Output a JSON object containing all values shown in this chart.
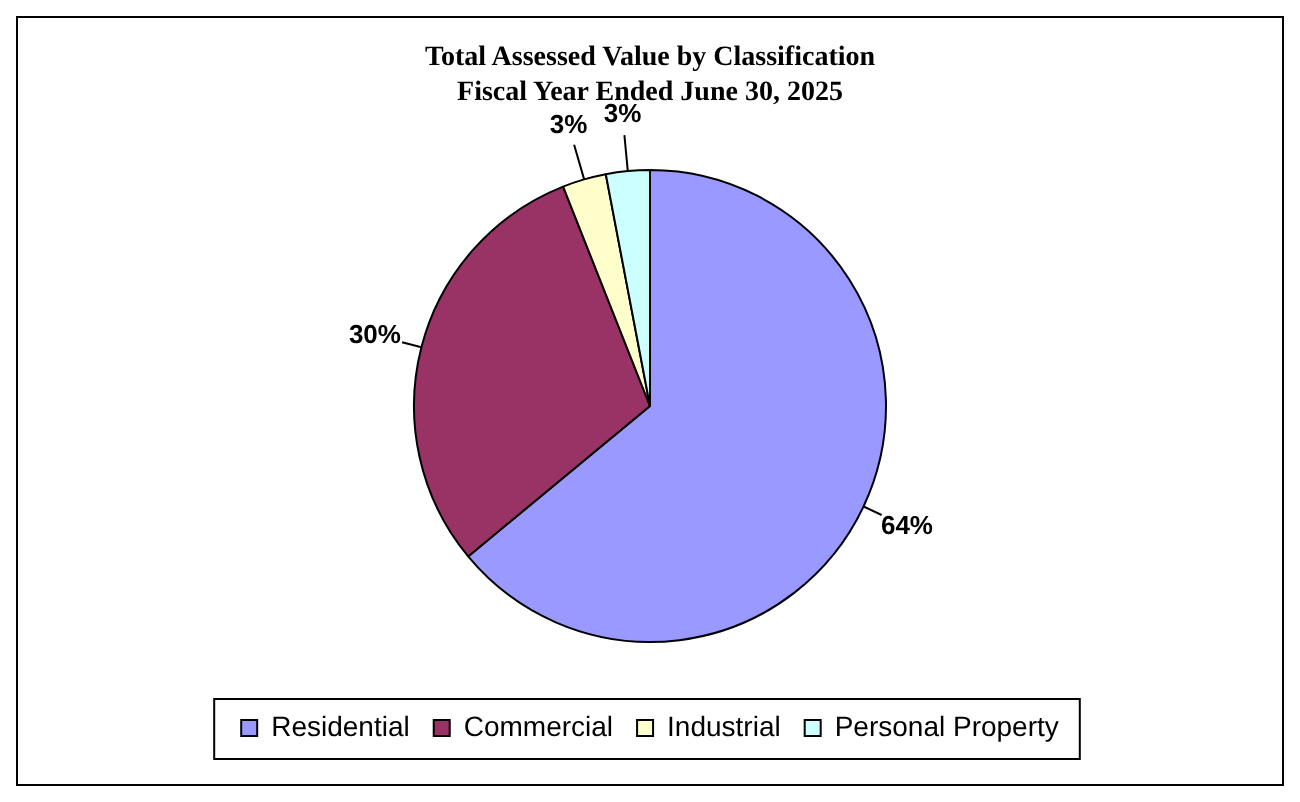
{
  "chart_data": {
    "type": "pie",
    "title": "Total Assessed Value by Classification\nFiscal Year Ended June 30, 2025",
    "categories": [
      "Residential",
      "Commercial",
      "Industrial",
      "Personal Property"
    ],
    "values": [
      64,
      30,
      3,
      3
    ],
    "value_labels": [
      "64%",
      "30%",
      "3%",
      "3%"
    ],
    "colors": [
      "#9999ff",
      "#993366",
      "#ffffcc",
      "#ccffff"
    ],
    "legend": "bottom"
  }
}
